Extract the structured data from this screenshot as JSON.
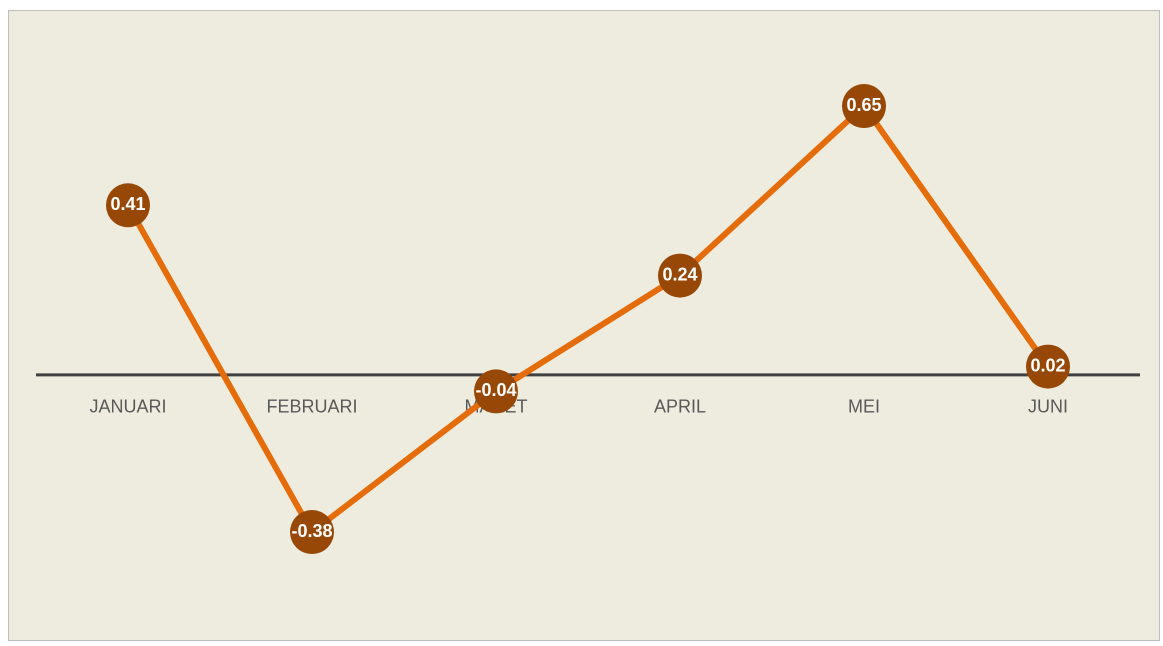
{
  "chart_data": {
    "type": "line",
    "categories": [
      "JANUARI",
      "FEBRUARI",
      "MARET",
      "APRIL",
      "MEI",
      "JUNI"
    ],
    "values": [
      0.41,
      -0.38,
      -0.04,
      0.24,
      0.65,
      0.02
    ],
    "color": "#e46c0a",
    "marker_color": "#974806",
    "ylim": [
      -0.6,
      0.8
    ]
  }
}
